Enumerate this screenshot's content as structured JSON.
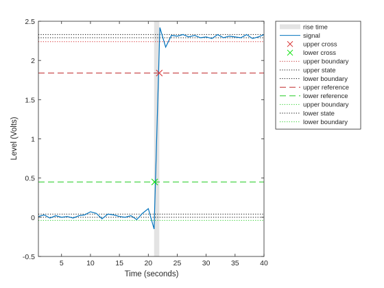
{
  "chart_data": {
    "type": "line",
    "xlabel": "Time (seconds)",
    "ylabel": "Level (Volts)",
    "xlim": [
      1,
      40
    ],
    "ylim": [
      -0.5,
      2.5
    ],
    "xticks": [
      5,
      10,
      15,
      20,
      25,
      30,
      35,
      40
    ],
    "yticks": [
      -0.5,
      0,
      0.5,
      1,
      1.5,
      2,
      2.5
    ],
    "grid": false,
    "legend_position": "outside-top-right",
    "signal": {
      "name": "signal",
      "color": "#0072bd",
      "x": [
        1,
        2,
        3,
        4,
        5,
        6,
        7,
        8,
        9,
        10,
        11,
        12,
        13,
        14,
        15,
        16,
        17,
        18,
        19,
        20,
        21,
        22,
        23,
        24,
        25,
        26,
        27,
        28,
        29,
        30,
        31,
        32,
        33,
        34,
        35,
        36,
        37,
        38,
        39,
        40
      ],
      "y": [
        0.01,
        0.03,
        -0.01,
        0.02,
        0.0,
        0.01,
        -0.01,
        0.02,
        0.03,
        0.07,
        0.05,
        -0.02,
        0.04,
        0.03,
        0.01,
        0.0,
        0.02,
        -0.03,
        0.05,
        0.11,
        -0.15,
        2.42,
        2.17,
        2.32,
        2.31,
        2.33,
        2.3,
        2.32,
        2.29,
        2.3,
        2.28,
        2.33,
        2.29,
        2.31,
        2.3,
        2.29,
        2.33,
        2.28,
        2.3,
        2.33
      ]
    },
    "rise_time": {
      "name": "rise time",
      "color": "#e3e3e3",
      "x_start": 21.0,
      "x_end": 21.9
    },
    "upper_cross": {
      "name": "upper cross",
      "color": "#d62728",
      "x": 21.9,
      "y": 1.84
    },
    "lower_cross": {
      "name": "lower cross",
      "color": "#00e000",
      "x": 21.1,
      "y": 0.45
    },
    "hlines": [
      {
        "name": "upper boundary",
        "y": 2.33,
        "color": "#000000",
        "style": "dotted"
      },
      {
        "name": "upper state",
        "y": 2.29,
        "color": "#000000",
        "style": "dotted"
      },
      {
        "name": "lower boundary",
        "y": 2.24,
        "color": "#d62728",
        "style": "dotted"
      },
      {
        "name": "upper reference",
        "y": 1.84,
        "color": "#c0282a",
        "style": "dashed"
      },
      {
        "name": "lower reference",
        "y": 0.45,
        "color": "#22cc22",
        "style": "dashed"
      },
      {
        "name": "upper boundary",
        "y": 0.04,
        "color": "#000000",
        "style": "dotted"
      },
      {
        "name": "lower state",
        "y": 0.0,
        "color": "#000000",
        "style": "dotted"
      },
      {
        "name": "lower boundary",
        "y": -0.04,
        "color": "#22cc22",
        "style": "dotted"
      }
    ],
    "legend": [
      {
        "label": "rise time",
        "kind": "patch",
        "color": "#e3e3e3"
      },
      {
        "label": "signal",
        "kind": "line",
        "color": "#0072bd",
        "style": "solid"
      },
      {
        "label": "upper cross",
        "kind": "marker",
        "color": "#d62728"
      },
      {
        "label": "lower cross",
        "kind": "marker",
        "color": "#00e000"
      },
      {
        "label": "upper boundary",
        "kind": "line",
        "color": "#c0282a",
        "style": "dotted"
      },
      {
        "label": "upper state",
        "kind": "line",
        "color": "#000000",
        "style": "dotted"
      },
      {
        "label": "lower boundary",
        "kind": "line",
        "color": "#000000",
        "style": "dotted"
      },
      {
        "label": "upper reference",
        "kind": "line",
        "color": "#c0282a",
        "style": "dashed"
      },
      {
        "label": "lower reference",
        "kind": "line",
        "color": "#22cc22",
        "style": "dashed"
      },
      {
        "label": "upper boundary",
        "kind": "line",
        "color": "#22cc22",
        "style": "dotted"
      },
      {
        "label": "lower state",
        "kind": "line",
        "color": "#000000",
        "style": "dotted"
      },
      {
        "label": "lower boundary",
        "kind": "line",
        "color": "#22cc22",
        "style": "dotted"
      }
    ]
  }
}
